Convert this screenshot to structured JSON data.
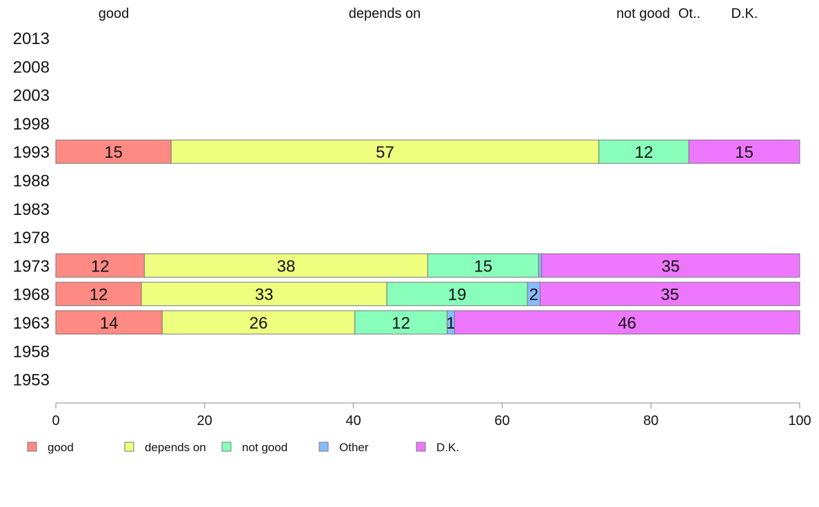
{
  "chart_data": {
    "type": "bar",
    "orientation": "horizontal",
    "stacked": true,
    "categories": [
      "2013",
      "2008",
      "2003",
      "1998",
      "1993",
      "1988",
      "1983",
      "1978",
      "1973",
      "1968",
      "1963",
      "1958",
      "1953"
    ],
    "series": [
      {
        "name": "good",
        "color": "#ff8a84",
        "values": [
          null,
          null,
          null,
          null,
          15.5,
          null,
          null,
          null,
          11.9,
          11.5,
          14.3,
          null,
          null
        ],
        "labels": [
          "",
          "",
          "",
          "",
          "15",
          "",
          "",
          "",
          "12",
          "12",
          "14",
          "",
          ""
        ]
      },
      {
        "name": "depends on",
        "color": "#eeff80",
        "values": [
          null,
          null,
          null,
          null,
          57.5,
          null,
          null,
          null,
          38.1,
          33.0,
          25.9,
          null,
          null
        ],
        "labels": [
          "",
          "",
          "",
          "",
          "57",
          "",
          "",
          "",
          "38",
          "33",
          "26",
          "",
          ""
        ]
      },
      {
        "name": "not good",
        "color": "#88ffbb",
        "values": [
          null,
          null,
          null,
          null,
          12.1,
          null,
          null,
          null,
          14.9,
          18.9,
          12.4,
          null,
          null
        ],
        "labels": [
          "",
          "",
          "",
          "",
          "12",
          "",
          "",
          "",
          "15",
          "19",
          "12",
          "",
          ""
        ]
      },
      {
        "name": "Other",
        "color": "#88bbff",
        "values": [
          null,
          null,
          null,
          null,
          0,
          null,
          null,
          null,
          0.4,
          1.7,
          1.0,
          null,
          null
        ],
        "labels": [
          "",
          "",
          "",
          "",
          "",
          "",
          "",
          "",
          "",
          "2",
          "1",
          "",
          ""
        ]
      },
      {
        "name": "D.K.",
        "color": "#ee77ff",
        "values": [
          null,
          null,
          null,
          null,
          14.9,
          null,
          null,
          null,
          34.7,
          34.9,
          46.4,
          null,
          null
        ],
        "labels": [
          "",
          "",
          "",
          "",
          "15",
          "",
          "",
          "",
          "35",
          "35",
          "46",
          "",
          ""
        ]
      }
    ],
    "top_labels": [
      "good",
      "depends on",
      "not good",
      "Ot..",
      "D.K."
    ],
    "xlim": [
      0,
      100
    ],
    "xticks": [
      "0",
      "20",
      "40",
      "60",
      "80",
      "100"
    ],
    "grid": false,
    "legend": {
      "position": "bottom-left",
      "items": [
        "good",
        "depends on",
        "not good",
        "Other",
        "D.K."
      ]
    }
  }
}
